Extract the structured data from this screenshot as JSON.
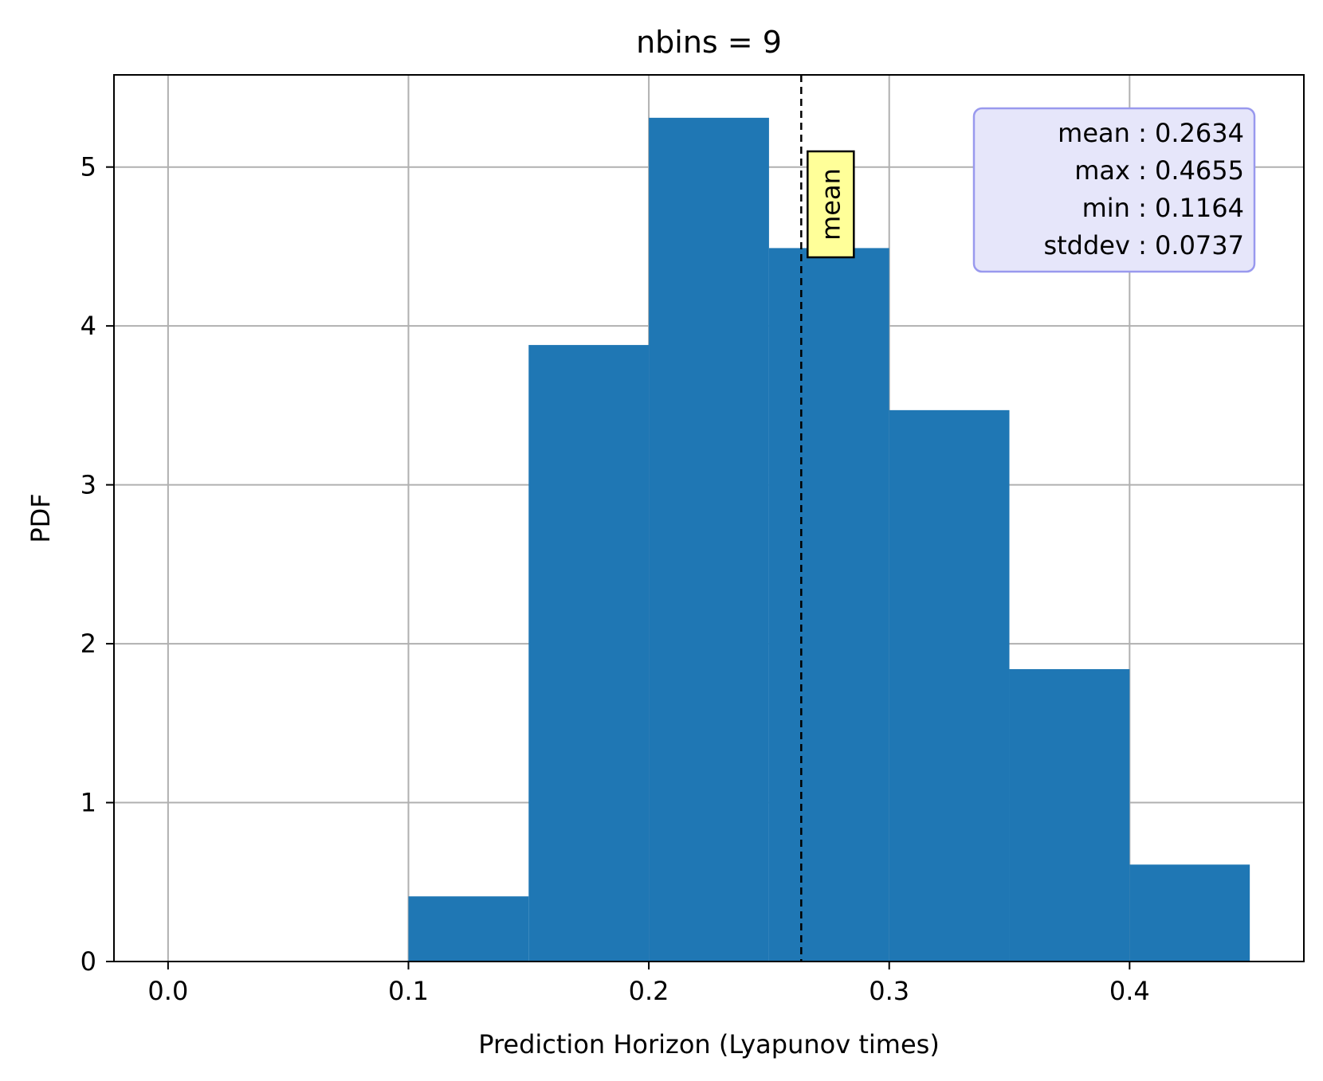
{
  "chart_data": {
    "type": "bar",
    "title": "nbins = 9",
    "xlabel": "Prediction Horizon (Lyapunov times)",
    "ylabel": "PDF",
    "xlim": [
      -0.0225,
      0.4725
    ],
    "ylim": [
      0,
      5.58
    ],
    "xticks": [
      0.0,
      0.1,
      0.2,
      0.3,
      0.4
    ],
    "xtick_labels": [
      "0.0",
      "0.1",
      "0.2",
      "0.3",
      "0.4"
    ],
    "yticks": [
      0,
      1,
      2,
      3,
      4,
      5
    ],
    "ytick_labels": [
      "0",
      "1",
      "2",
      "3",
      "4",
      "5"
    ],
    "grid": true,
    "bar_color": "#1f77b4",
    "bins": [
      {
        "x0": 0.1,
        "x1": 0.15,
        "value": 0.41
      },
      {
        "x0": 0.15,
        "x1": 0.2,
        "value": 3.88
      },
      {
        "x0": 0.2,
        "x1": 0.25,
        "value": 5.31
      },
      {
        "x0": 0.25,
        "x1": 0.3,
        "value": 4.49
      },
      {
        "x0": 0.3,
        "x1": 0.35,
        "value": 3.47
      },
      {
        "x0": 0.35,
        "x1": 0.4,
        "value": 1.84
      },
      {
        "x0": 0.4,
        "x1": 0.45,
        "value": 0.61
      }
    ],
    "mean_line": {
      "x": 0.2634,
      "label": "mean",
      "style": "dashed",
      "color": "#000000"
    },
    "mean_label_box_color": "#ffff99",
    "stats_box": {
      "placement": "top-right",
      "background": "#e6e6fa",
      "border": "#9999ee",
      "lines": [
        "mean : 0.2634",
        "max : 0.4655",
        "min : 0.1164",
        "stddev : 0.0737"
      ]
    }
  }
}
